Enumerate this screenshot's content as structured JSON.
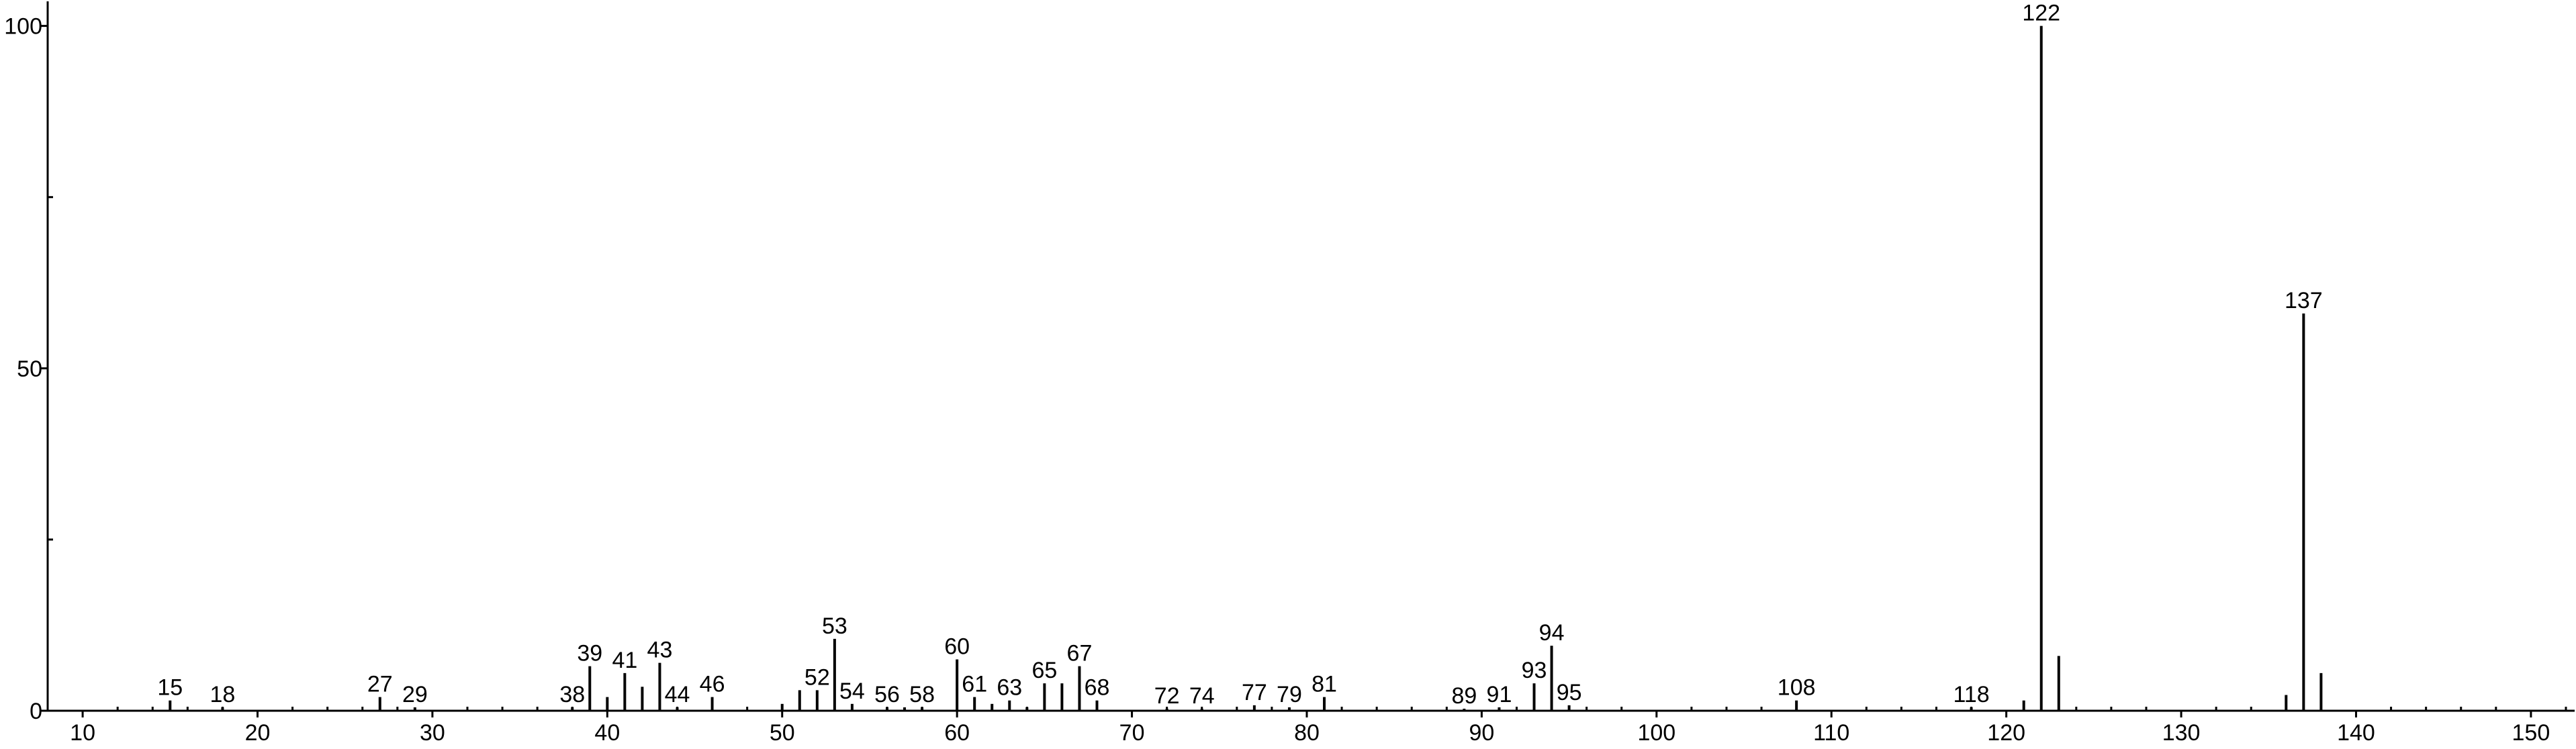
{
  "chart_data": {
    "type": "stem",
    "x": [
      15,
      18,
      27,
      29,
      38,
      39,
      40,
      41,
      42,
      43,
      44,
      46,
      50,
      51,
      52,
      53,
      54,
      56,
      57,
      58,
      60,
      61,
      62,
      63,
      64,
      65,
      66,
      67,
      68,
      72,
      74,
      77,
      79,
      81,
      89,
      91,
      93,
      94,
      95,
      108,
      118,
      121,
      122,
      123,
      136,
      137,
      138
    ],
    "values": [
      1.5,
      0.5,
      2,
      0.5,
      0.5,
      6.5,
      2,
      5.5,
      3.5,
      7,
      0.5,
      2,
      1,
      3,
      3,
      10.5,
      1,
      0.5,
      0.5,
      0.5,
      7.5,
      2,
      1,
      1.5,
      0.5,
      4,
      4,
      6.5,
      1.5,
      0.3,
      0.3,
      0.8,
      0.5,
      2,
      0.3,
      0.5,
      4,
      9.5,
      0.8,
      1.5,
      0.5,
      1.5,
      100,
      8,
      2.3,
      58,
      5.5
    ],
    "show_label": [
      true,
      true,
      true,
      true,
      true,
      true,
      false,
      true,
      false,
      true,
      true,
      true,
      false,
      false,
      true,
      true,
      true,
      true,
      false,
      true,
      true,
      true,
      false,
      true,
      false,
      true,
      false,
      true,
      true,
      true,
      true,
      true,
      true,
      true,
      true,
      true,
      true,
      true,
      true,
      true,
      true,
      false,
      true,
      false,
      false,
      true,
      false
    ],
    "color": "#000000",
    "xlim": [
      8,
      152.5
    ],
    "ylim": [
      0,
      103
    ],
    "xticks": [
      10,
      20,
      30,
      40,
      50,
      60,
      70,
      80,
      90,
      100,
      110,
      120,
      130,
      140,
      150
    ],
    "xminorticks": [
      12,
      14,
      16,
      18,
      22,
      24,
      26,
      28,
      32,
      34,
      36,
      38,
      42,
      44,
      46,
      48,
      52,
      54,
      56,
      58,
      62,
      64,
      66,
      68,
      72,
      74,
      76,
      78,
      82,
      84,
      86,
      88,
      92,
      94,
      96,
      98,
      102,
      104,
      106,
      108,
      112,
      114,
      116,
      118,
      122,
      124,
      126,
      128,
      132,
      134,
      136,
      138,
      142,
      144,
      146,
      148,
      152
    ],
    "yticks": [
      0,
      50,
      100
    ],
    "yminorticks": [
      25,
      75
    ]
  }
}
